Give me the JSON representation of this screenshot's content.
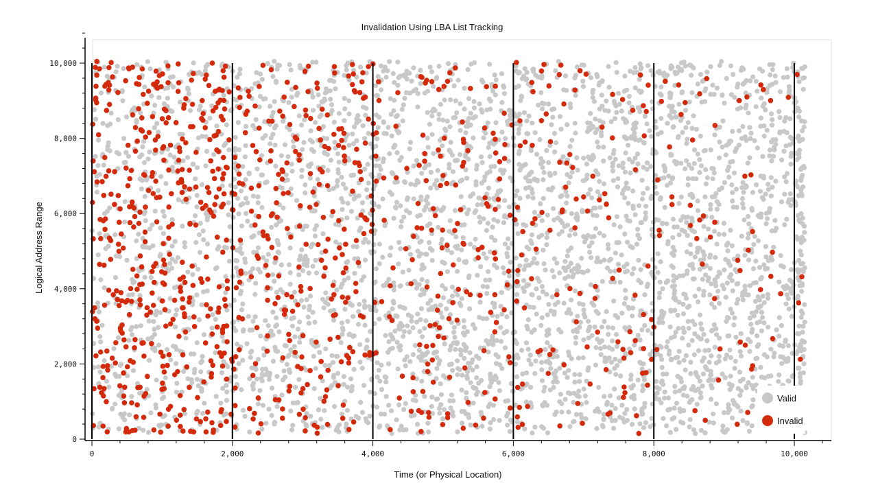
{
  "chart_data": {
    "type": "scatter",
    "title": "Invalidation Using LBA List Tracking",
    "xlabel": "Time (or Physical Location)",
    "ylabel": "Logical Address Range",
    "xlim": [
      0,
      10000
    ],
    "ylim": [
      0,
      10000
    ],
    "x_ticks": [
      0,
      2000,
      4000,
      6000,
      8000,
      10000
    ],
    "x_tick_labels": [
      "0",
      "2,000",
      "4,000",
      "6,000",
      "8,000",
      "10,000"
    ],
    "y_ticks": [
      0,
      2000,
      4000,
      6000,
      8000,
      10000
    ],
    "y_tick_labels": [
      "0",
      "2,000",
      "4,000",
      "6,000",
      "8,000",
      "10,000"
    ],
    "block_boundaries_x": [
      0,
      2000,
      4000,
      6000,
      8000,
      10000
    ],
    "grid": false,
    "legend_position": "bottom-right",
    "series": [
      {
        "name": "Valid",
        "color": "#c8c8c8",
        "invalid_fraction_by_block": [
          0.0,
          0.0,
          0.0,
          0.0,
          0.0,
          0.0
        ]
      },
      {
        "name": "Invalid",
        "color": "#d42a0c",
        "invalid_fraction_by_block": [
          0.42,
          0.24,
          0.16,
          0.1,
          0.05,
          0.02
        ]
      }
    ],
    "points_per_block": 950,
    "note_blocks": "Points are densely scattered across the full range; red (invalid) share decreases with time."
  }
}
